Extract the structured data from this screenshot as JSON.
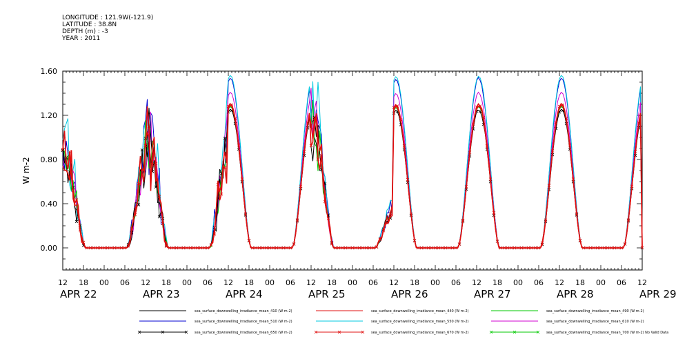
{
  "header": {
    "longitude": "LONGITUDE : 121.9W(-121.9)",
    "latitude": "LATITUDE : 38.8N",
    "depth": "DEPTH (m) : -3",
    "year": "YEAR : 2011"
  },
  "chart_data": {
    "type": "line",
    "ylabel": "W m-2",
    "ylim": [
      -0.2,
      1.6
    ],
    "yticks": [
      "0.00",
      "0.40",
      "0.80",
      "1.20",
      "1.60"
    ],
    "xlim_hours": [
      0,
      168
    ],
    "x_start": "2011-04-22 12:00",
    "x_tick_labels": [
      "12",
      "18",
      "00",
      "06",
      "12",
      "18",
      "00",
      "06",
      "12",
      "18",
      "00",
      "06",
      "12",
      "18",
      "00",
      "06",
      "12",
      "18",
      "00",
      "06",
      "12",
      "18",
      "00",
      "06",
      "12",
      "18",
      "00",
      "06",
      "12"
    ],
    "date_labels": [
      "APR 22",
      "APR 23",
      "APR 24",
      "APR 25",
      "APR 26",
      "APR 27",
      "APR 28",
      "APR 29"
    ],
    "days": [
      {
        "label": "APR 22",
        "noisy": true,
        "peak": 0.85,
        "noise": 0.2
      },
      {
        "label": "APR 23",
        "noisy": true,
        "peak": 1.0,
        "noise": 0.28
      },
      {
        "label": "APR 24",
        "noisy": false,
        "peak": 1.28,
        "noise": 0.0
      },
      {
        "label": "APR 25",
        "noisy": true,
        "peak": 1.15,
        "noise": 0.14,
        "late": true
      },
      {
        "label": "APR 26",
        "noisy": false,
        "peak": 1.27,
        "noise": 0.0
      },
      {
        "label": "APR 27",
        "noisy": false,
        "peak": 1.28,
        "noise": 0.02
      },
      {
        "label": "APR 28",
        "noisy": false,
        "peak": 1.28,
        "noise": 0.0
      }
    ],
    "series": [
      {
        "name": "sea_surface_downwelling_irradiance_mean_410 (W m-2)",
        "color": "#000000",
        "scale": 1.0,
        "marker": false
      },
      {
        "name": "sea_surface_downwelling_irradiance_mean_440 (W m-2)",
        "color": "#e01010",
        "scale": 1.01,
        "marker": false
      },
      {
        "name": "sea_surface_downwelling_irradiance_mean_490 (W m-2)",
        "color": "#00c800",
        "scale": 1.0,
        "marker": false
      },
      {
        "name": "sea_surface_downwelling_irradiance_mean_510 (W m-2)",
        "color": "#0000d0",
        "scale": 1.2,
        "marker": false
      },
      {
        "name": "sea_surface_downwelling_irradiance_mean_550 (W m-2)",
        "color": "#00c8e0",
        "scale": 1.22,
        "marker": false
      },
      {
        "name": "sea_surface_downwelling_irradiance_mean_610 (W m-2)",
        "color": "#d000d0",
        "scale": 1.1,
        "marker": false
      },
      {
        "name": "sea_surface_downwelling_irradiance_mean_650 (W m-2)",
        "color": "#000000",
        "scale": 0.98,
        "marker": true
      },
      {
        "name": "sea_surface_downwelling_irradiance_mean_670 (W m-2)",
        "color": "#e01010",
        "scale": 1.02,
        "marker": true
      },
      {
        "name": "sea_surface_downwelling_irradiance_mean_700 (W m-2) No Valid Data",
        "color": "#00c800",
        "scale": 0,
        "marker": true
      }
    ]
  }
}
